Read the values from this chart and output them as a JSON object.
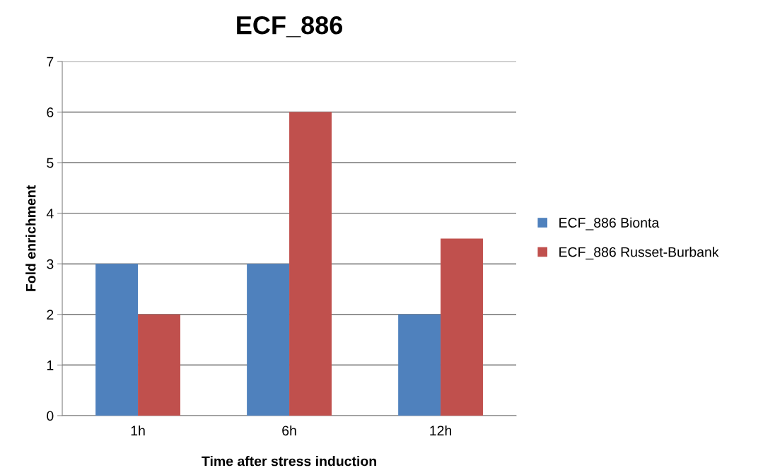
{
  "chart_data": {
    "type": "bar",
    "title": "ECF_886",
    "xlabel": "Time after stress induction",
    "ylabel": "Fold enrichment",
    "categories": [
      "1h",
      "6h",
      "12h"
    ],
    "series": [
      {
        "name": "ECF_886 Bionta",
        "color": "#4f81bd",
        "values": [
          3,
          3,
          2
        ]
      },
      {
        "name": "ECF_886 Russet-Burbank",
        "color": "#c0504d",
        "values": [
          2,
          6,
          3.5
        ]
      }
    ],
    "ylim": [
      0,
      7
    ],
    "yticks": [
      0,
      1,
      2,
      3,
      4,
      5,
      6,
      7
    ],
    "grid": "y",
    "legend": "right"
  }
}
